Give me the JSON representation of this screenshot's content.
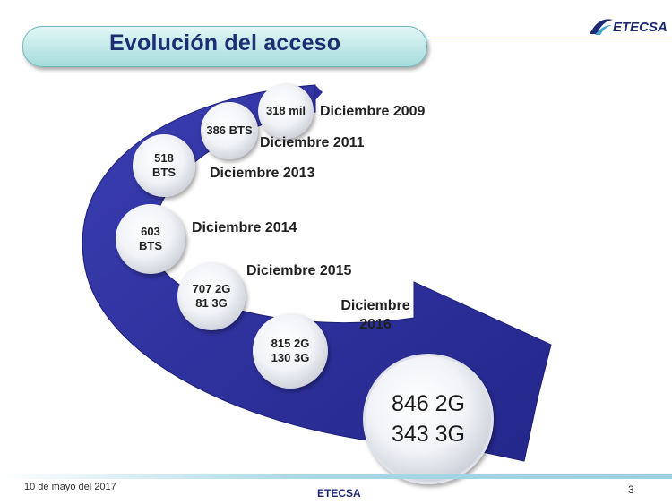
{
  "slide": {
    "title": "Evolución del acceso",
    "logo_text": "ETECSA",
    "footer": {
      "date": "10 de mayo del 2017",
      "brand": "ETECSA",
      "page_number": "3"
    }
  },
  "timeline": [
    {
      "date": "Diciembre 2009",
      "value_lines": [
        "318 mil"
      ]
    },
    {
      "date": "Diciembre 2011",
      "value_lines": [
        "386 BTS"
      ]
    },
    {
      "date": "Diciembre 2013",
      "value_lines": [
        "518",
        "BTS"
      ]
    },
    {
      "date": "Diciembre 2014",
      "value_lines": [
        "603",
        "BTS"
      ]
    },
    {
      "date": "Diciembre 2015",
      "value_lines": [
        "707 2G",
        "81 3G"
      ]
    },
    {
      "date": "Diciembre 2016",
      "value_lines": [
        "815 2G",
        "130 3G"
      ]
    },
    {
      "date": "",
      "value_lines": [
        "846 2G",
        "343 3G"
      ]
    }
  ],
  "colors": {
    "arrow": "#2c2f9a",
    "title": "#1c2d72",
    "pill": "#a6dcdc"
  }
}
